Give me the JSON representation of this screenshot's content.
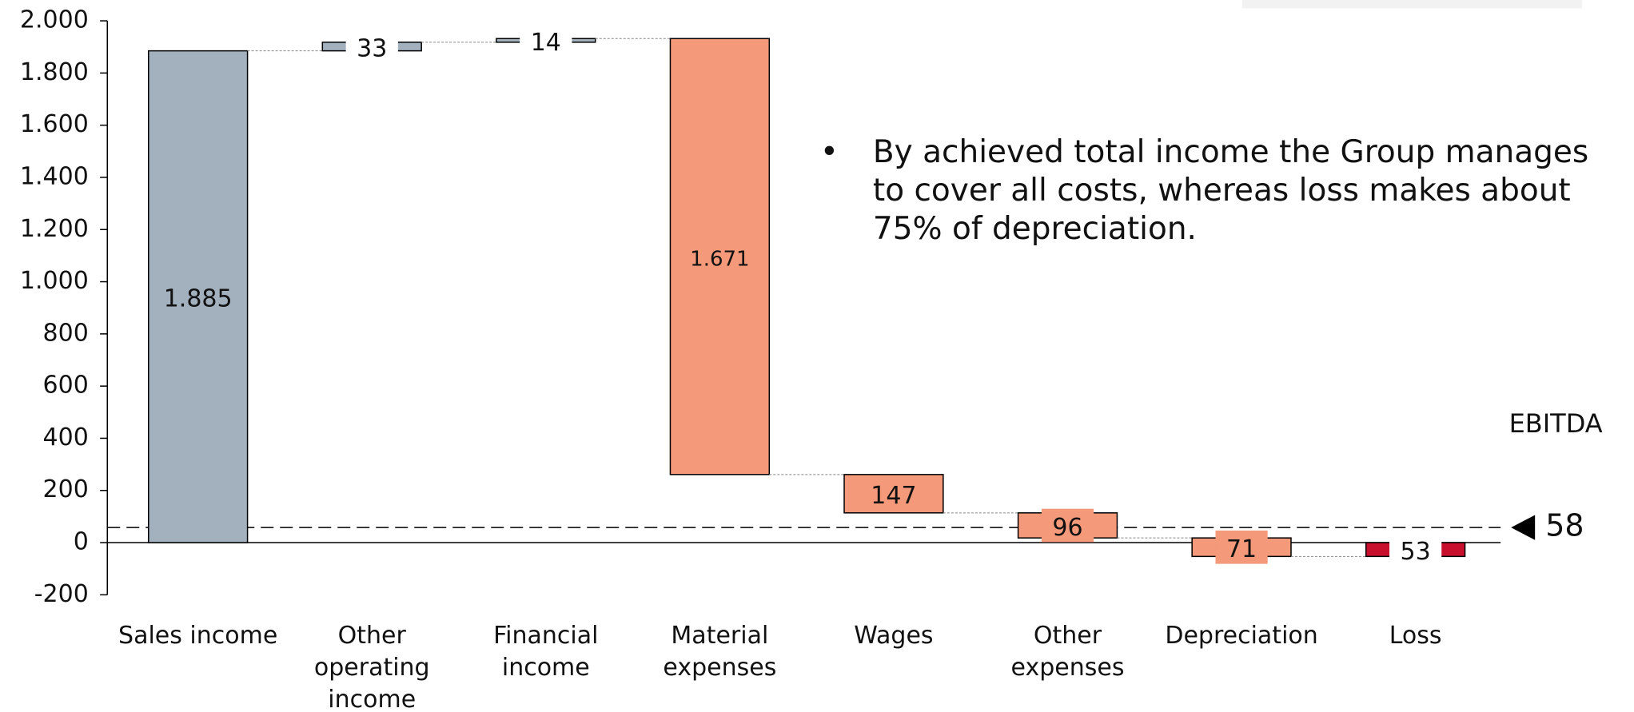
{
  "chart_data": {
    "type": "waterfall",
    "categories": [
      "Sales income",
      "Other operating income",
      "Financial income",
      "Material expenses",
      "Wages",
      "Other expenses",
      "Depreciation",
      "Loss"
    ],
    "values": [
      1885,
      33,
      14,
      -1671,
      -147,
      -96,
      -71,
      53
    ],
    "value_labels": [
      "1.885",
      "33",
      "14",
      "1.671",
      "147",
      "96",
      "71",
      "53"
    ],
    "colors": [
      "#a3b1bf",
      "#a3b1bf",
      "#a3b1bf",
      "#f4997a",
      "#f4997a",
      "#f4997a",
      "#f4997a",
      "#c8102e"
    ],
    "ylim": [
      -200,
      2000
    ],
    "yticks": [
      -200,
      0,
      200,
      400,
      600,
      800,
      {
        "value": 1000,
        "label": "1.000"
      },
      {
        "value": 1200,
        "label": "1.200"
      },
      {
        "value": 1400,
        "label": "1.400"
      },
      {
        "value": 1600,
        "label": "1.600"
      },
      {
        "value": 1800,
        "label": "1.800"
      },
      {
        "value": 2000,
        "label": "2.000"
      }
    ],
    "reference_line": {
      "label": "EBITDA",
      "value": 58
    },
    "annotation": "By achieved total income the Group manages to cover all costs, whereas loss makes about 75% of depreciation."
  }
}
